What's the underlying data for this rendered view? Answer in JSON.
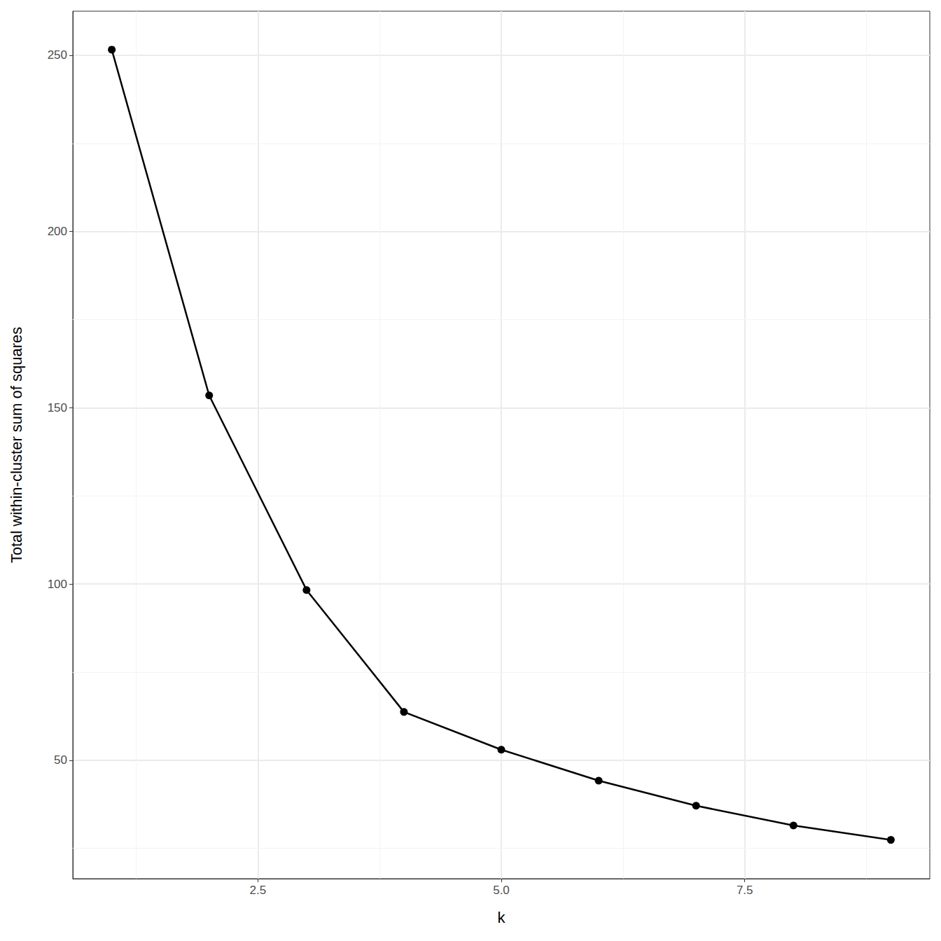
{
  "chart_data": {
    "type": "line",
    "x_label": "k",
    "y_label": "Total within-cluster sum of squares",
    "x": [
      1,
      2,
      3,
      4,
      5,
      6,
      7,
      8,
      9
    ],
    "values": [
      251.6,
      153.5,
      98.3,
      63.7,
      53.0,
      44.2,
      37.1,
      31.5,
      27.4
    ],
    "color": "#000000",
    "marker": "circle",
    "xlim": [
      0.6,
      9.4
    ],
    "ylim": [
      16.4,
      262.5
    ],
    "xticks": [
      2.5,
      {
        "value": 5,
        "label": "5.0"
      },
      7.5
    ],
    "yticks": [
      50,
      100,
      150,
      200,
      250
    ],
    "grid": true
  }
}
